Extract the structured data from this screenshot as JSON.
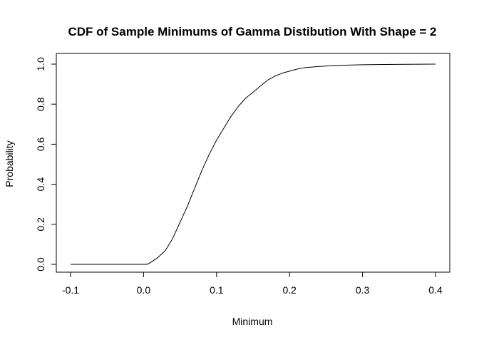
{
  "chart_data": {
    "type": "line",
    "title": "CDF of Sample Minimums of Gamma Distibution With Shape = 2",
    "xlabel": "Minimum",
    "ylabel": "Probability",
    "xlim": [
      -0.1,
      0.4
    ],
    "ylim": [
      0.0,
      1.0
    ],
    "x_ticks": [
      "-0.1",
      "0.0",
      "0.1",
      "0.2",
      "0.3",
      "0.4"
    ],
    "y_ticks": [
      "0.0",
      "0.2",
      "0.4",
      "0.6",
      "0.8",
      "1.0"
    ],
    "grid": false,
    "series": [
      {
        "color": "#000000",
        "x": [
          -0.1,
          0.0,
          0.005,
          0.01,
          0.02,
          0.03,
          0.04,
          0.05,
          0.06,
          0.07,
          0.08,
          0.09,
          0.1,
          0.11,
          0.12,
          0.13,
          0.14,
          0.15,
          0.16,
          0.17,
          0.18,
          0.19,
          0.2,
          0.21,
          0.22,
          0.24,
          0.26,
          0.28,
          0.3,
          0.33,
          0.36,
          0.4
        ],
        "y": [
          0.0,
          0.0,
          0.0,
          0.01,
          0.035,
          0.07,
          0.13,
          0.21,
          0.29,
          0.38,
          0.47,
          0.55,
          0.62,
          0.68,
          0.74,
          0.79,
          0.83,
          0.86,
          0.89,
          0.92,
          0.94,
          0.955,
          0.965,
          0.975,
          0.982,
          0.988,
          0.993,
          0.995,
          0.997,
          0.998,
          0.999,
          1.0
        ]
      }
    ]
  }
}
